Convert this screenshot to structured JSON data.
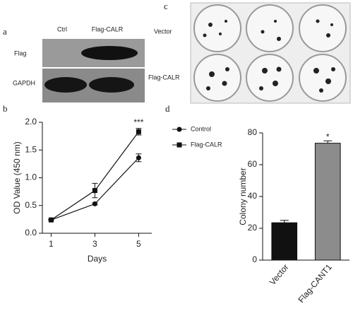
{
  "panel_a": {
    "label": "a",
    "lanes": [
      "Ctrl",
      "Flag-CALR"
    ],
    "rows": [
      "Flag",
      "GAPDH"
    ]
  },
  "panel_c": {
    "label": "c",
    "rows": [
      "Vector",
      "Flag-CALR"
    ]
  },
  "chart_data": [
    {
      "type": "line",
      "label": "b",
      "x": [
        1,
        3,
        5
      ],
      "xlim": [
        0.6,
        5.6
      ],
      "xticks": [
        1,
        3,
        5
      ],
      "ylim": [
        0,
        2
      ],
      "yticks": [
        {
          "value": 0,
          "label": "0.0"
        },
        {
          "value": 0.5,
          "label": "0.5"
        },
        {
          "value": 1,
          "label": "1.0"
        },
        {
          "value": 1.5,
          "label": "1.5"
        },
        {
          "value": 2,
          "label": "2.0"
        }
      ],
      "xlabel": "Days",
      "ylabel": "OD Value (450 nm)",
      "annotation": "***",
      "series": [
        {
          "name": "Control",
          "color": "#111111",
          "marker": "circle",
          "values": [
            0.24,
            0.53,
            1.36
          ],
          "errors": [
            0.01,
            0.02,
            0.07
          ]
        },
        {
          "name": "Flag-CALR",
          "color": "#111111",
          "marker": "square",
          "values": [
            0.24,
            0.77,
            1.83
          ],
          "errors": [
            0.01,
            0.13,
            0.06
          ]
        }
      ]
    },
    {
      "type": "bar",
      "label": "d",
      "categories": [
        "Vector",
        "Flag-CANT1"
      ],
      "values": [
        23.5,
        73.5
      ],
      "errors": [
        1.5,
        1.5
      ],
      "colors": [
        "#111111",
        "#8c8c8c"
      ],
      "ylim": [
        0,
        80
      ],
      "yticks": [
        0,
        20,
        40,
        60,
        80
      ],
      "ylabel": "Colony number",
      "annotation": "*"
    }
  ]
}
